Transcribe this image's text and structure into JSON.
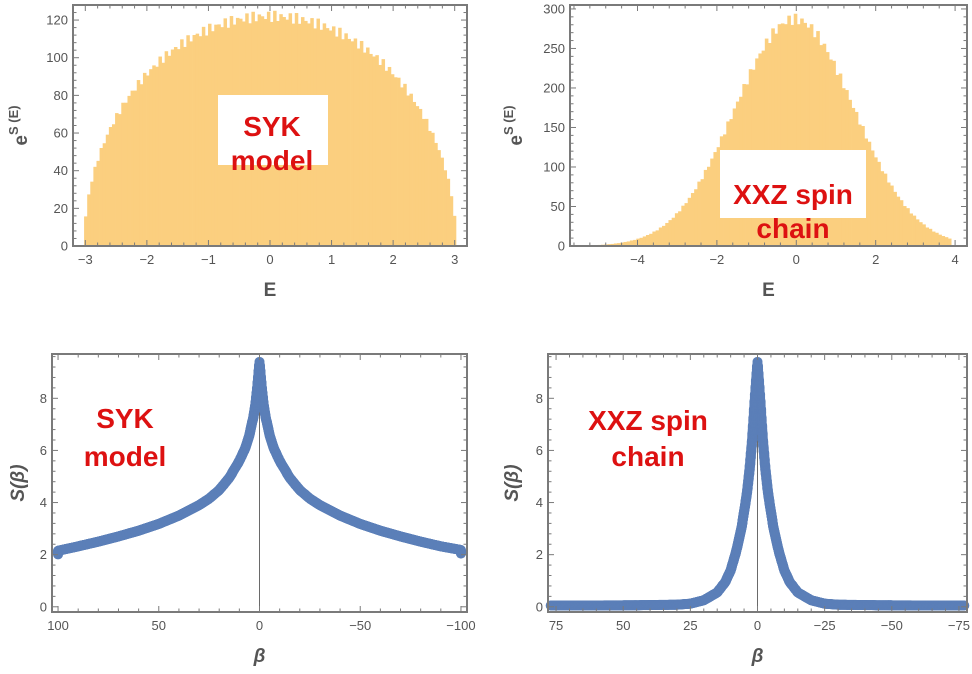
{
  "chart_data": [
    {
      "id": "syk-hist",
      "type": "histogram",
      "title": "",
      "xlabel": "E",
      "ylabel": "e^{S(E)}",
      "ylabel_base": "e",
      "ylabel_sup": "S (E)",
      "xlim": [
        -3.2,
        3.2
      ],
      "ylim": [
        0,
        128
      ],
      "xticks": [
        -3,
        -2,
        -1,
        0,
        1,
        2,
        3
      ],
      "xtick_labels": [
        "−3",
        "−2",
        "−1",
        "0",
        "1",
        "2",
        "3"
      ],
      "yticks": [
        0,
        20,
        40,
        60,
        80,
        100,
        120
      ],
      "ytick_labels": [
        "0",
        "20",
        "40",
        "60",
        "80",
        "100",
        "120"
      ],
      "color": "#fbcf7f",
      "shape": "semicircle",
      "params": {
        "xmin": -3.02,
        "xmax": 3.02,
        "peak": 122,
        "bins": 120
      },
      "annotation": {
        "lines": [
          "SYK",
          "model"
        ],
        "boxed": true
      }
    },
    {
      "id": "xxz-hist",
      "type": "histogram",
      "title": "",
      "xlabel": "E",
      "ylabel": "e^{S(E)}",
      "ylabel_base": "e",
      "ylabel_sup": "S (E)",
      "xlim": [
        -5.7,
        4.3
      ],
      "ylim": [
        0,
        305
      ],
      "xticks": [
        -4,
        -2,
        0,
        2,
        4
      ],
      "xtick_labels": [
        "−4",
        "−2",
        "0",
        "2",
        "4"
      ],
      "yticks": [
        0,
        50,
        100,
        150,
        200,
        250,
        300
      ],
      "ytick_labels": [
        "0",
        "50",
        "100",
        "150",
        "200",
        "250",
        "300"
      ],
      "color": "#fbcf7f",
      "shape": "gaussian",
      "params": {
        "mean": -0.05,
        "sigma": 1.5,
        "peak": 287,
        "xmin": -5.0,
        "xmax": 3.9,
        "bins": 110
      },
      "annotation": {
        "lines": [
          "XXZ spin",
          "chain"
        ],
        "boxed": true
      }
    },
    {
      "id": "syk-entropy",
      "type": "scatter",
      "title": "",
      "xlabel": "β",
      "ylabel": "S(β)",
      "xlim": [
        103,
        -103
      ],
      "ylim": [
        -0.2,
        9.7
      ],
      "xticks": [
        100,
        50,
        0,
        -50,
        -100
      ],
      "xtick_labels": [
        "100",
        "50",
        "0",
        "−50",
        "−100"
      ],
      "yticks": [
        0,
        2,
        4,
        6,
        8
      ],
      "ytick_labels": [
        "0",
        "2",
        "4",
        "6",
        "8"
      ],
      "color": "#5b7fb8",
      "points": [
        [
          100,
          2.15
        ],
        [
          90,
          2.32
        ],
        [
          80,
          2.5
        ],
        [
          70,
          2.7
        ],
        [
          60,
          2.92
        ],
        [
          50,
          3.18
        ],
        [
          40,
          3.5
        ],
        [
          30,
          3.9
        ],
        [
          25,
          4.15
        ],
        [
          20,
          4.48
        ],
        [
          15,
          4.95
        ],
        [
          10,
          5.6
        ],
        [
          7,
          6.1
        ],
        [
          5,
          6.6
        ],
        [
          3,
          7.3
        ],
        [
          2,
          7.8
        ],
        [
          1,
          8.5
        ],
        [
          0,
          9.4
        ],
        [
          -1,
          8.5
        ],
        [
          -2,
          7.8
        ],
        [
          -3,
          7.3
        ],
        [
          -5,
          6.6
        ],
        [
          -7,
          6.1
        ],
        [
          -10,
          5.6
        ],
        [
          -15,
          4.95
        ],
        [
          -20,
          4.48
        ],
        [
          -25,
          4.15
        ],
        [
          -30,
          3.9
        ],
        [
          -40,
          3.5
        ],
        [
          -50,
          3.18
        ],
        [
          -60,
          2.92
        ],
        [
          -70,
          2.7
        ],
        [
          -80,
          2.5
        ],
        [
          -90,
          2.32
        ],
        [
          -100,
          2.18
        ]
      ],
      "annotation": {
        "lines": [
          "SYK",
          "model"
        ],
        "boxed": false
      }
    },
    {
      "id": "xxz-entropy",
      "type": "scatter",
      "title": "",
      "xlabel": "β",
      "ylabel": "S(β)",
      "xlim": [
        78,
        -78
      ],
      "ylim": [
        -0.2,
        9.7
      ],
      "xticks": [
        75,
        50,
        25,
        0,
        -25,
        -50,
        -75
      ],
      "xtick_labels": [
        "75",
        "50",
        "25",
        "0",
        "−25",
        "−50",
        "−75"
      ],
      "yticks": [
        0,
        2,
        4,
        6,
        8
      ],
      "ytick_labels": [
        "0",
        "2",
        "4",
        "6",
        "8"
      ],
      "color": "#5b7fb8",
      "points": [
        [
          77,
          0.05
        ],
        [
          60,
          0.05
        ],
        [
          45,
          0.06
        ],
        [
          30,
          0.08
        ],
        [
          25,
          0.12
        ],
        [
          20,
          0.25
        ],
        [
          15,
          0.55
        ],
        [
          12,
          0.95
        ],
        [
          10,
          1.4
        ],
        [
          8,
          2.1
        ],
        [
          6,
          3.0
        ],
        [
          4,
          4.3
        ],
        [
          3,
          5.2
        ],
        [
          2,
          6.4
        ],
        [
          1,
          8.0
        ],
        [
          0,
          9.4
        ],
        [
          -1,
          8.0
        ],
        [
          -2,
          6.4
        ],
        [
          -3,
          5.2
        ],
        [
          -4,
          4.3
        ],
        [
          -6,
          3.0
        ],
        [
          -8,
          2.1
        ],
        [
          -10,
          1.4
        ],
        [
          -12,
          0.95
        ],
        [
          -15,
          0.55
        ],
        [
          -20,
          0.25
        ],
        [
          -25,
          0.12
        ],
        [
          -30,
          0.08
        ],
        [
          -45,
          0.06
        ],
        [
          -60,
          0.05
        ],
        [
          -77,
          0.05
        ]
      ],
      "annotation": {
        "lines": [
          "XXZ spin",
          "chain"
        ],
        "boxed": false
      }
    }
  ]
}
